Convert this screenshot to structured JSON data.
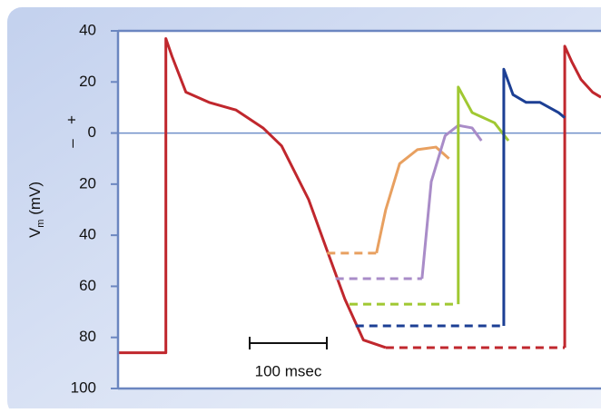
{
  "chart_data": {
    "type": "line",
    "ylabel": "V",
    "ylabel_sub": "m",
    "ylabel_unit": "(mV)",
    "sign_labels": [
      "+",
      "–"
    ],
    "ylim": [
      -100,
      40
    ],
    "yticks": [
      {
        "value": -100,
        "label": "100"
      },
      {
        "value": -80,
        "label": "80"
      },
      {
        "value": -60,
        "label": "60"
      },
      {
        "value": -40,
        "label": "40"
      },
      {
        "value": -20,
        "label": "20"
      },
      0,
      20,
      40
    ],
    "xlim": [
      0,
      626
    ],
    "reference_line": 0,
    "reference_color": "#6f8fc9",
    "scale_bar": {
      "label": "100 msec",
      "length": 100
    },
    "series": [
      {
        "color": "#c0272d",
        "dashed": false,
        "x": [
          0,
          62,
          62,
          70,
          88,
          118,
          153,
          188,
          212,
          247,
          271,
          294,
          318,
          347
        ],
        "values": [
          -86,
          -86,
          37,
          30,
          16,
          12,
          9,
          2,
          -5,
          -26,
          -46,
          -65,
          -81,
          -84
        ]
      },
      {
        "color": "#c0272d",
        "dashed": true,
        "x": [
          347,
          579
        ],
        "values": [
          -84,
          -84
        ]
      },
      {
        "color": "#c0272d",
        "dashed": false,
        "x": [
          579,
          579,
          588,
          600,
          615,
          626
        ],
        "values": [
          -84,
          34,
          28,
          21,
          16,
          14
        ]
      },
      {
        "color": "#e8a060",
        "dashed": true,
        "x": [
          271,
          335
        ],
        "values": [
          -47,
          -47
        ]
      },
      {
        "color": "#e8a060",
        "dashed": false,
        "x": [
          335,
          347,
          365,
          388,
          412,
          429
        ],
        "values": [
          -47,
          -30,
          -12,
          -6.5,
          -5.5,
          -10
        ]
      },
      {
        "color": "#a98cc8",
        "dashed": true,
        "x": [
          282,
          394
        ],
        "values": [
          -57,
          -57
        ]
      },
      {
        "color": "#a98cc8",
        "dashed": false,
        "x": [
          394,
          406,
          424,
          441,
          459,
          471
        ],
        "values": [
          -57,
          -19,
          -1,
          3,
          2,
          -3
        ]
      },
      {
        "color": "#a0c832",
        "dashed": true,
        "x": [
          300,
          441
        ],
        "values": [
          -67,
          -67
        ]
      },
      {
        "color": "#a0c832",
        "dashed": false,
        "x": [
          441,
          441,
          459,
          488,
          506
        ],
        "values": [
          -67,
          18,
          8,
          4,
          -3
        ]
      },
      {
        "color": "#1c3f94",
        "dashed": true,
        "x": [
          308,
          500
        ],
        "values": [
          -75.5,
          -75.5
        ]
      },
      {
        "color": "#1c3f94",
        "dashed": false,
        "x": [
          500,
          500,
          512,
          529,
          547,
          571,
          579
        ],
        "values": [
          -75.5,
          25,
          15,
          12,
          12,
          8,
          6
        ]
      }
    ]
  }
}
